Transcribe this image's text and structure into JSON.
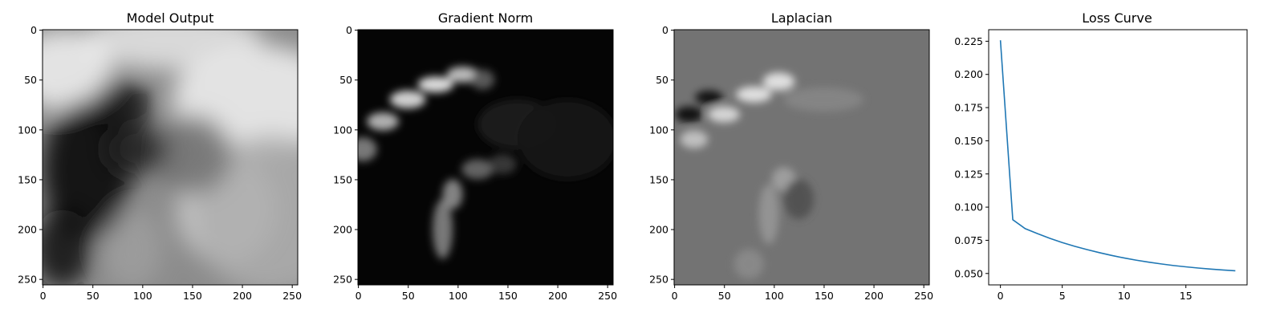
{
  "colors": {
    "line": "#1f77b4",
    "axis": "#000000",
    "background": "#ffffff"
  },
  "chart_data": [
    {
      "type": "heatmap",
      "title": "Model Output",
      "colormap": "gray",
      "xlim": [
        0,
        255
      ],
      "ylim": [
        255,
        0
      ],
      "xticks": [
        0,
        50,
        100,
        150,
        200,
        250
      ],
      "yticks": [
        0,
        50,
        100,
        150,
        200,
        250
      ],
      "blobs": [
        {
          "x": 215,
          "y": 70,
          "sx": 85,
          "sy": 55,
          "v": 0.95
        },
        {
          "x": 130,
          "y": 10,
          "sx": 90,
          "sy": 30,
          "v": 0.9
        },
        {
          "x": 20,
          "y": 40,
          "sx": 50,
          "sy": 40,
          "v": 0.95
        },
        {
          "x": 185,
          "y": 180,
          "sx": 50,
          "sy": 55,
          "v": 0.82
        },
        {
          "x": 230,
          "y": 185,
          "sx": 80,
          "sy": 80,
          "v": 0.68
        },
        {
          "x": 90,
          "y": 220,
          "sx": 30,
          "sy": 40,
          "v": 0.62
        },
        {
          "x": 150,
          "y": 125,
          "sx": 40,
          "sy": 40,
          "v": 0.45
        },
        {
          "x": 80,
          "y": 75,
          "sx": 30,
          "sy": 26,
          "v": 0.05
        },
        {
          "x": 45,
          "y": 140,
          "sx": 45,
          "sy": 70,
          "v": 0.02
        },
        {
          "x": 95,
          "y": 120,
          "sx": 30,
          "sy": 25,
          "v": 0.12
        },
        {
          "x": 20,
          "y": 220,
          "sx": 30,
          "sy": 40,
          "v": 0.05
        }
      ]
    },
    {
      "type": "heatmap",
      "title": "Gradient Norm",
      "colormap": "gray",
      "xlim": [
        0,
        255
      ],
      "ylim": [
        255,
        0
      ],
      "xticks": [
        0,
        50,
        100,
        150,
        200,
        250
      ],
      "yticks": [
        0,
        50,
        100,
        150,
        200,
        250
      ],
      "blobs": [
        {
          "x": 5,
          "y": 120,
          "sx": 14,
          "sy": 12,
          "v": 0.55
        },
        {
          "x": 25,
          "y": 92,
          "sx": 16,
          "sy": 9,
          "v": 0.8
        },
        {
          "x": 50,
          "y": 70,
          "sx": 18,
          "sy": 9,
          "v": 0.95
        },
        {
          "x": 78,
          "y": 55,
          "sx": 18,
          "sy": 8,
          "v": 1.0
        },
        {
          "x": 105,
          "y": 45,
          "sx": 16,
          "sy": 8,
          "v": 0.85
        },
        {
          "x": 125,
          "y": 50,
          "sx": 12,
          "sy": 10,
          "v": 0.4
        },
        {
          "x": 85,
          "y": 200,
          "sx": 10,
          "sy": 30,
          "v": 0.55
        },
        {
          "x": 95,
          "y": 165,
          "sx": 10,
          "sy": 15,
          "v": 0.6
        },
        {
          "x": 120,
          "y": 140,
          "sx": 16,
          "sy": 10,
          "v": 0.45
        },
        {
          "x": 145,
          "y": 135,
          "sx": 14,
          "sy": 10,
          "v": 0.25
        },
        {
          "x": 160,
          "y": 95,
          "sx": 40,
          "sy": 25,
          "v": 0.12
        },
        {
          "x": 210,
          "y": 110,
          "sx": 50,
          "sy": 40,
          "v": 0.08
        }
      ]
    },
    {
      "type": "heatmap",
      "title": "Laplacian",
      "colormap": "gray",
      "xlim": [
        0,
        255
      ],
      "ylim": [
        255,
        0
      ],
      "xticks": [
        0,
        50,
        100,
        150,
        200,
        250
      ],
      "yticks": [
        0,
        50,
        100,
        150,
        200,
        250
      ],
      "baseline": 0.45,
      "blobs": [
        {
          "x": 15,
          "y": 85,
          "sx": 14,
          "sy": 8,
          "v": -0.45
        },
        {
          "x": 35,
          "y": 68,
          "sx": 14,
          "sy": 7,
          "v": -0.45
        },
        {
          "x": 20,
          "y": 110,
          "sx": 14,
          "sy": 9,
          "v": 0.35
        },
        {
          "x": 50,
          "y": 85,
          "sx": 16,
          "sy": 8,
          "v": 0.45
        },
        {
          "x": 80,
          "y": 65,
          "sx": 18,
          "sy": 8,
          "v": 0.5
        },
        {
          "x": 105,
          "y": 52,
          "sx": 16,
          "sy": 9,
          "v": 0.5
        },
        {
          "x": 150,
          "y": 70,
          "sx": 40,
          "sy": 12,
          "v": 0.08
        },
        {
          "x": 95,
          "y": 185,
          "sx": 10,
          "sy": 30,
          "v": 0.15
        },
        {
          "x": 110,
          "y": 150,
          "sx": 12,
          "sy": 12,
          "v": 0.2
        },
        {
          "x": 125,
          "y": 170,
          "sx": 15,
          "sy": 20,
          "v": -0.15
        },
        {
          "x": 75,
          "y": 235,
          "sx": 15,
          "sy": 15,
          "v": 0.1
        }
      ]
    },
    {
      "type": "line",
      "title": "Loss Curve",
      "xlim": [
        -0.95,
        19.95
      ],
      "ylim": [
        0.0414,
        0.2337
      ],
      "xticks": [
        0,
        5,
        10,
        15
      ],
      "yticks": [
        "0.050",
        "0.075",
        "0.100",
        "0.125",
        "0.150",
        "0.175",
        "0.200",
        "0.225"
      ],
      "series": [
        {
          "x": [
            0,
            1,
            2,
            3,
            4,
            5,
            6,
            7,
            8,
            9,
            10,
            11,
            12,
            13,
            14,
            15,
            16,
            17,
            18,
            19
          ],
          "values": [
            0.2257,
            0.0905,
            0.0838,
            0.08,
            0.0765,
            0.0733,
            0.0705,
            0.068,
            0.0657,
            0.0636,
            0.0617,
            0.06,
            0.0585,
            0.0572,
            0.056,
            0.055,
            0.0541,
            0.0533,
            0.0526,
            0.052
          ]
        }
      ]
    }
  ]
}
